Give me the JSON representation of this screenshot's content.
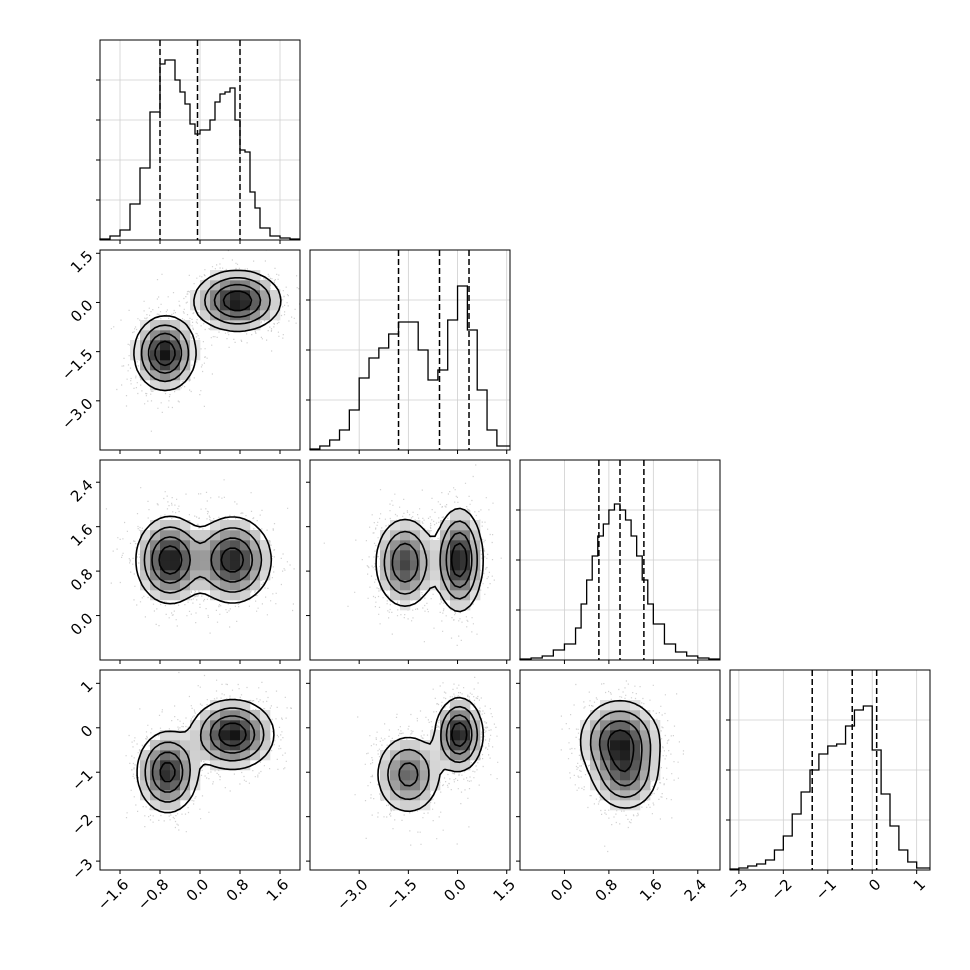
{
  "chart_data": {
    "type": "corner",
    "title": "",
    "grid": true,
    "parameters": [
      {
        "range": [
          -2.0,
          2.0
        ],
        "ticks": [
          -1.6,
          -0.8,
          0.0,
          0.8,
          1.6
        ],
        "tick_labels": [
          "−1.6",
          "−0.8",
          "0.0",
          "0.8",
          "1.6"
        ],
        "quantiles": [
          -0.8,
          -0.05,
          0.8
        ],
        "histogram": {
          "bin_edges": [
            -2.0,
            -1.8,
            -1.6,
            -1.4,
            -1.2,
            -1.0,
            -0.8,
            -0.7,
            -0.6,
            -0.5,
            -0.4,
            -0.3,
            -0.2,
            -0.1,
            0.0,
            0.2,
            0.3,
            0.4,
            0.5,
            0.6,
            0.7,
            0.8,
            0.9,
            1.0,
            1.1,
            1.2,
            1.4,
            1.6,
            1.8,
            2.0
          ],
          "counts": [
            0.005,
            0.02,
            0.05,
            0.18,
            0.36,
            0.64,
            0.88,
            0.9,
            0.9,
            0.8,
            0.74,
            0.68,
            0.58,
            0.53,
            0.55,
            0.6,
            0.69,
            0.73,
            0.74,
            0.76,
            0.6,
            0.45,
            0.44,
            0.24,
            0.16,
            0.06,
            0.02,
            0.01,
            0.005
          ],
          "ymax": 1.0,
          "ytick_count": 4
        }
      },
      {
        "range": [
          -4.5,
          1.6
        ],
        "ticks": [
          -3.0,
          -1.5,
          0.0,
          1.5
        ],
        "tick_labels": [
          "−3.0",
          "−1.5",
          "0.0",
          "1.5"
        ],
        "quantiles": [
          -1.8,
          -0.55,
          0.35
        ],
        "histogram": {
          "bin_edges": [
            -4.5,
            -4.2,
            -3.9,
            -3.6,
            -3.3,
            -3.0,
            -2.7,
            -2.4,
            -2.1,
            -1.8,
            -1.5,
            -1.2,
            -0.9,
            -0.6,
            -0.3,
            0.0,
            0.3,
            0.6,
            0.9,
            1.2,
            1.6
          ],
          "counts": [
            0.005,
            0.02,
            0.05,
            0.1,
            0.2,
            0.36,
            0.46,
            0.51,
            0.58,
            0.64,
            0.64,
            0.5,
            0.35,
            0.4,
            0.65,
            0.82,
            0.6,
            0.3,
            0.1,
            0.02
          ],
          "ymax": 1.0,
          "ytick_count": 3
        }
      },
      {
        "range": [
          -0.8,
          2.8
        ],
        "ticks": [
          0.0,
          0.8,
          1.6,
          2.4
        ],
        "tick_labels": [
          "0.0",
          "0.8",
          "1.6",
          "2.4"
        ],
        "quantiles": [
          0.62,
          1.0,
          1.43
        ],
        "histogram": {
          "bin_edges": [
            -0.8,
            -0.6,
            -0.4,
            -0.2,
            0.0,
            0.2,
            0.3,
            0.4,
            0.5,
            0.6,
            0.7,
            0.8,
            0.9,
            1.0,
            1.1,
            1.2,
            1.3,
            1.4,
            1.5,
            1.6,
            1.8,
            2.0,
            2.2,
            2.4,
            2.6,
            2.8
          ],
          "counts": [
            0.005,
            0.01,
            0.02,
            0.05,
            0.08,
            0.16,
            0.28,
            0.4,
            0.52,
            0.62,
            0.68,
            0.75,
            0.78,
            0.75,
            0.7,
            0.62,
            0.52,
            0.4,
            0.28,
            0.18,
            0.08,
            0.04,
            0.02,
            0.01,
            0.005
          ],
          "ymax": 1.0,
          "ytick_count": 3
        }
      },
      {
        "range": [
          -3.2,
          1.3
        ],
        "ticks": [
          -3,
          -2,
          -1,
          0,
          1
        ],
        "tick_labels": [
          "−3",
          "−2",
          "−1",
          "0",
          "1"
        ],
        "quantiles": [
          -1.35,
          -0.45,
          0.1
        ],
        "histogram": {
          "bin_edges": [
            -3.2,
            -3.0,
            -2.8,
            -2.6,
            -2.4,
            -2.2,
            -2.0,
            -1.8,
            -1.6,
            -1.4,
            -1.2,
            -1.0,
            -0.8,
            -0.6,
            -0.4,
            -0.2,
            0.0,
            0.2,
            0.4,
            0.6,
            0.8,
            1.0,
            1.3
          ],
          "counts": [
            0.005,
            0.01,
            0.02,
            0.03,
            0.05,
            0.1,
            0.17,
            0.28,
            0.39,
            0.5,
            0.58,
            0.62,
            0.63,
            0.72,
            0.8,
            0.82,
            0.6,
            0.38,
            0.22,
            0.1,
            0.04,
            0.01
          ],
          "ymax": 1.0,
          "ytick_count": 3
        }
      }
    ],
    "pairs": [
      {
        "x": 0,
        "y": 1,
        "peaks": [
          {
            "mx": -0.7,
            "my": -1.55,
            "sx": 0.3,
            "sy": 0.55,
            "w": 1.0
          },
          {
            "mx": 0.75,
            "my": 0.05,
            "sx": 0.42,
            "sy": 0.45,
            "w": 1.0
          }
        ],
        "contour_levels": [
          0.12,
          0.3,
          0.55,
          0.8
        ]
      },
      {
        "x": 0,
        "y": 2,
        "peaks": [
          {
            "mx": -0.6,
            "my": 1.0,
            "sx": 0.33,
            "sy": 0.38,
            "w": 1.0
          },
          {
            "mx": 0.65,
            "my": 1.0,
            "sx": 0.38,
            "sy": 0.38,
            "w": 0.95
          }
        ],
        "contour_levels": [
          0.12,
          0.3,
          0.55,
          0.8
        ]
      },
      {
        "x": 1,
        "y": 2,
        "peaks": [
          {
            "mx": -1.6,
            "my": 0.95,
            "sx": 0.45,
            "sy": 0.4,
            "w": 0.8
          },
          {
            "mx": 0.05,
            "my": 1.0,
            "sx": 0.35,
            "sy": 0.45,
            "w": 1.0
          }
        ],
        "contour_levels": [
          0.12,
          0.3,
          0.55,
          0.8
        ]
      },
      {
        "x": 0,
        "y": 3,
        "peaks": [
          {
            "mx": -0.65,
            "my": -1.0,
            "sx": 0.3,
            "sy": 0.45,
            "w": 0.9
          },
          {
            "mx": 0.65,
            "my": -0.15,
            "sx": 0.4,
            "sy": 0.38,
            "w": 1.0
          }
        ],
        "contour_levels": [
          0.12,
          0.3,
          0.55,
          0.8
        ]
      },
      {
        "x": 1,
        "y": 3,
        "peaks": [
          {
            "mx": -1.5,
            "my": -1.05,
            "sx": 0.5,
            "sy": 0.45,
            "w": 0.65
          },
          {
            "mx": 0.05,
            "my": -0.15,
            "sx": 0.35,
            "sy": 0.4,
            "w": 1.0
          }
        ],
        "contour_levels": [
          0.12,
          0.3,
          0.55,
          0.8
        ]
      },
      {
        "x": 2,
        "y": 3,
        "peaks": [
          {
            "mx": 1.0,
            "my": -0.3,
            "sx": 0.35,
            "sy": 0.45,
            "w": 1.0
          },
          {
            "mx": 1.1,
            "my": -1.1,
            "sx": 0.3,
            "sy": 0.4,
            "w": 0.6
          }
        ],
        "contour_levels": [
          0.12,
          0.3,
          0.55,
          0.8
        ]
      }
    ]
  }
}
